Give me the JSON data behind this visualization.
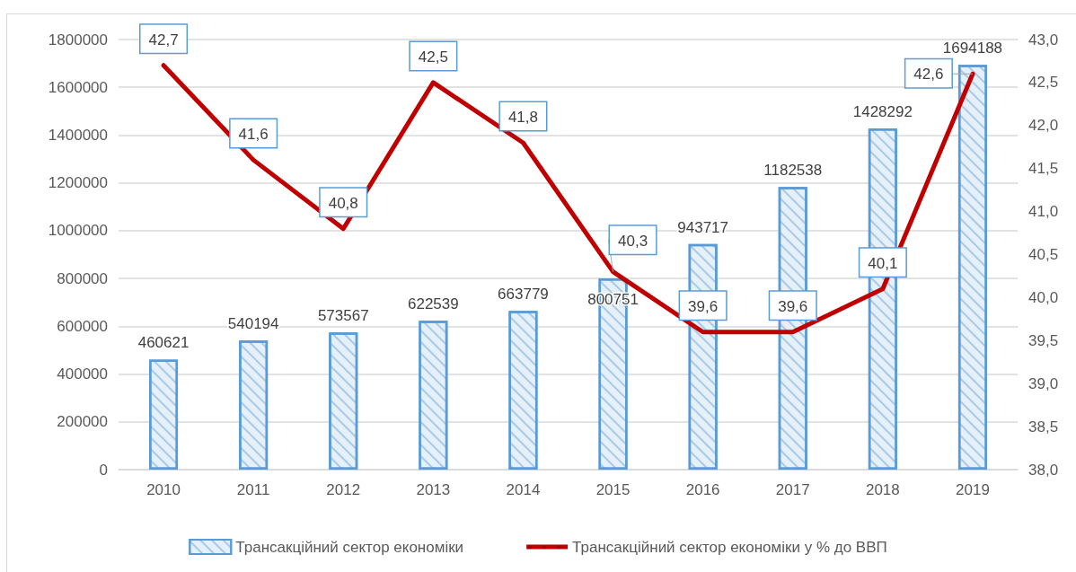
{
  "chart_data": {
    "type": "bar",
    "categories": [
      "2010",
      "2011",
      "2012",
      "2013",
      "2014",
      "2015",
      "2016",
      "2017",
      "2018",
      "2019"
    ],
    "series": [
      {
        "name": "Трансакційний сектор економіки",
        "color": "#5b9bd5",
        "values": [
          460621,
          540194,
          573567,
          622539,
          663779,
          800751,
          943717,
          1182538,
          1428292,
          1694188
        ],
        "value_labels": [
          "460621",
          "540194",
          "573567",
          "622539",
          "663779",
          "800751",
          "943717",
          "1182538",
          "1428292",
          "1694188"
        ]
      },
      {
        "name": "Трансакційний сектор економіки у % до ВВП",
        "type": "line",
        "axis": "y2",
        "color": "#c00000",
        "values": [
          42.7,
          41.6,
          40.8,
          42.5,
          41.8,
          40.3,
          39.6,
          39.6,
          40.1,
          42.6
        ],
        "value_labels": [
          "42,7",
          "41,6",
          "40,8",
          "42,5",
          "41,8",
          "40,3",
          "39,6",
          "39,6",
          "40,1",
          "42,6"
        ]
      }
    ],
    "ylim": [
      0,
      1800000
    ],
    "yticks": [
      0,
      200000,
      400000,
      600000,
      800000,
      1000000,
      1200000,
      1400000,
      1600000,
      1800000
    ],
    "y2lim": [
      38,
      43
    ],
    "y2ticks": [
      {
        "value": 38,
        "label": "38,0"
      },
      {
        "value": 38.5,
        "label": "38,5"
      },
      {
        "value": 39,
        "label": "39,0"
      },
      {
        "value": 39.5,
        "label": "39,5"
      },
      {
        "value": 40,
        "label": "40,0"
      },
      {
        "value": 40.5,
        "label": "40,5"
      },
      {
        "value": 41,
        "label": "41,0"
      },
      {
        "value": 41.5,
        "label": "41,5"
      },
      {
        "value": 42,
        "label": "42,0"
      },
      {
        "value": 42.5,
        "label": "42,5"
      },
      {
        "value": 43,
        "label": "43,0"
      }
    ],
    "grid": "y",
    "legend": "bottom"
  }
}
